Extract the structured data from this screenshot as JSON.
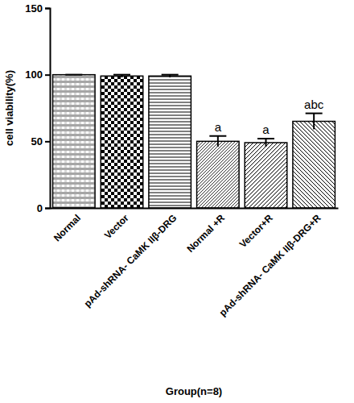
{
  "chart_data": {
    "type": "bar",
    "x_label": "Group(n=8)",
    "y_label": "cell viability(%)",
    "categories": [
      "Normal",
      "Vector",
      "pAd-shRNA- CaMK IIβ-DRG",
      "Normal +R",
      "Vector+R",
      "pAd-shRNA- CaMK IIβ-DRG+R"
    ],
    "values": [
      100,
      99,
      99,
      50,
      49,
      65
    ],
    "errors": [
      0,
      1,
      1,
      4,
      3,
      6
    ],
    "annotations": [
      null,
      null,
      null,
      "a",
      "a",
      "abc"
    ],
    "color": "#000000",
    "ylim": [
      0,
      150
    ],
    "yticks": [
      0,
      50,
      100,
      150
    ],
    "grid": false
  }
}
